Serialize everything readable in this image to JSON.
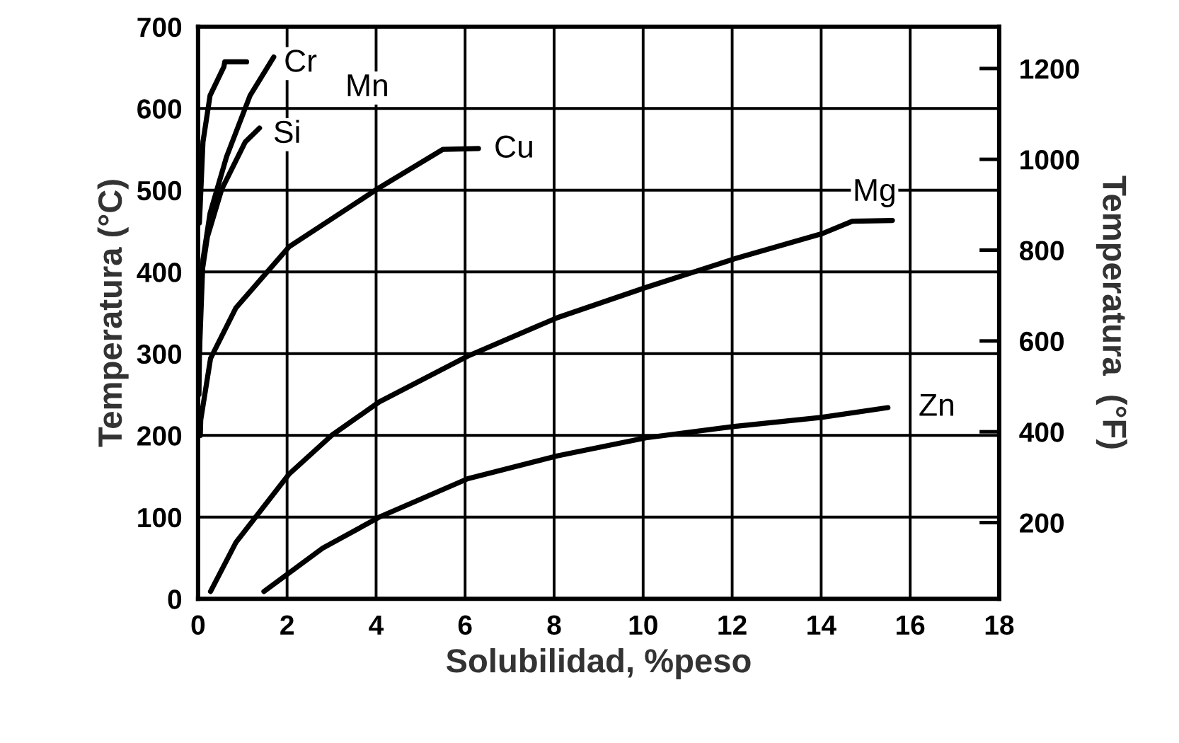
{
  "chart_data": {
    "type": "line",
    "xlabel": "Solubilidad, %peso",
    "ylabel": "Temperatura (°C)",
    "y2label": "Temperatura  (°F)",
    "xlim": [
      0,
      18
    ],
    "xticks": [
      0,
      2,
      4,
      6,
      8,
      10,
      12,
      14,
      16,
      18
    ],
    "ylim": [
      0,
      700
    ],
    "yticks": [
      0,
      100,
      200,
      300,
      400,
      500,
      600,
      700
    ],
    "y2lim": [
      32,
      1292
    ],
    "y2ticks": [
      200,
      400,
      600,
      800,
      1000,
      1200
    ],
    "grid": true,
    "legend": false,
    "marker": "none",
    "line_style": "solid",
    "series": [
      {
        "color": "#000000",
        "x": [
          0.03,
          0.05,
          0.11,
          0.27,
          0.58,
          0.6,
          1.09
        ],
        "values": [
          460,
          484,
          559,
          616,
          651,
          657,
          657
        ]
      },
      {
        "color": "#000000",
        "x": [
          0.03,
          0.11,
          0.27,
          0.64,
          1.17,
          1.7
        ],
        "values": [
          300,
          415,
          472,
          541,
          616,
          663
        ]
      },
      {
        "color": "#000000",
        "x": [
          0.02,
          0.05,
          0.21,
          0.53,
          1.06,
          1.38
        ],
        "values": [
          250,
          386,
          443,
          501,
          559,
          576
        ]
      },
      {
        "color": "#000000",
        "x": [
          0.05,
          0.06,
          0.28,
          0.85,
          2.05,
          4.07,
          5.5,
          6.3
        ],
        "values": [
          200,
          219,
          294,
          356,
          431,
          503,
          550,
          551
        ]
      },
      {
        "color": "#000000",
        "x": [
          0.28,
          0.85,
          2.05,
          3.0,
          4.07,
          6.06,
          8.07,
          10.06,
          12.05,
          14.03,
          14.7,
          15.6
        ],
        "values": [
          9,
          69,
          153,
          200,
          241,
          297,
          344,
          381,
          416,
          447,
          462,
          463
        ]
      },
      {
        "color": "#000000",
        "x": [
          1.48,
          2.8,
          4.07,
          6.06,
          8.07,
          10.06,
          12.05,
          14.0,
          15.5
        ],
        "values": [
          9,
          62,
          100,
          147,
          175,
          197,
          211,
          222,
          234
        ]
      }
    ],
    "annotations": [
      {
        "text": "Cr",
        "x": 2.3,
        "y": 655
      },
      {
        "text": "Mn",
        "x": 3.8,
        "y": 625
      },
      {
        "text": "Si",
        "x": 2.0,
        "y": 568
      },
      {
        "text": "Cu",
        "x": 7.1,
        "y": 550
      },
      {
        "text": "Mg",
        "x": 15.2,
        "y": 497
      },
      {
        "text": "Zn",
        "x": 16.6,
        "y": 234
      }
    ]
  }
}
